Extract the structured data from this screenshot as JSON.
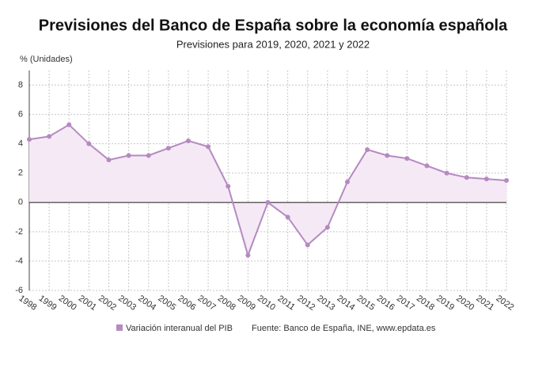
{
  "chart_data": {
    "type": "line",
    "title": "Previsiones del Banco de España sobre la economía española",
    "subtitle": "Previsiones para 2019, 2020, 2021 y 2022",
    "y_label": "% (Unidades)",
    "source": "Fuente: Banco de España, INE, www.epdata.es",
    "categories": [
      "1998",
      "1999",
      "2000",
      "2001",
      "2002",
      "2003",
      "2004",
      "2005",
      "2006",
      "2007",
      "2008",
      "2009",
      "2010",
      "2011",
      "2012",
      "2013",
      "2014",
      "2015",
      "2016",
      "2017",
      "2018",
      "2019",
      "2020",
      "2021",
      "2022"
    ],
    "series": [
      {
        "name": "Variación interanual del PIB",
        "color": "#b58ac1",
        "fill": "#f5e9f5",
        "values": [
          4.3,
          4.5,
          5.3,
          4.0,
          2.9,
          3.2,
          3.2,
          3.7,
          4.2,
          3.8,
          1.1,
          -3.6,
          0.0,
          -1.0,
          -2.9,
          -1.7,
          1.4,
          3.6,
          3.2,
          3.0,
          2.5,
          2.0,
          1.7,
          1.6,
          1.5
        ]
      }
    ],
    "ylim": [
      -6,
      9
    ],
    "yticks": [
      -6,
      -4,
      -2,
      0,
      2,
      4,
      6,
      8
    ],
    "grid": true
  }
}
